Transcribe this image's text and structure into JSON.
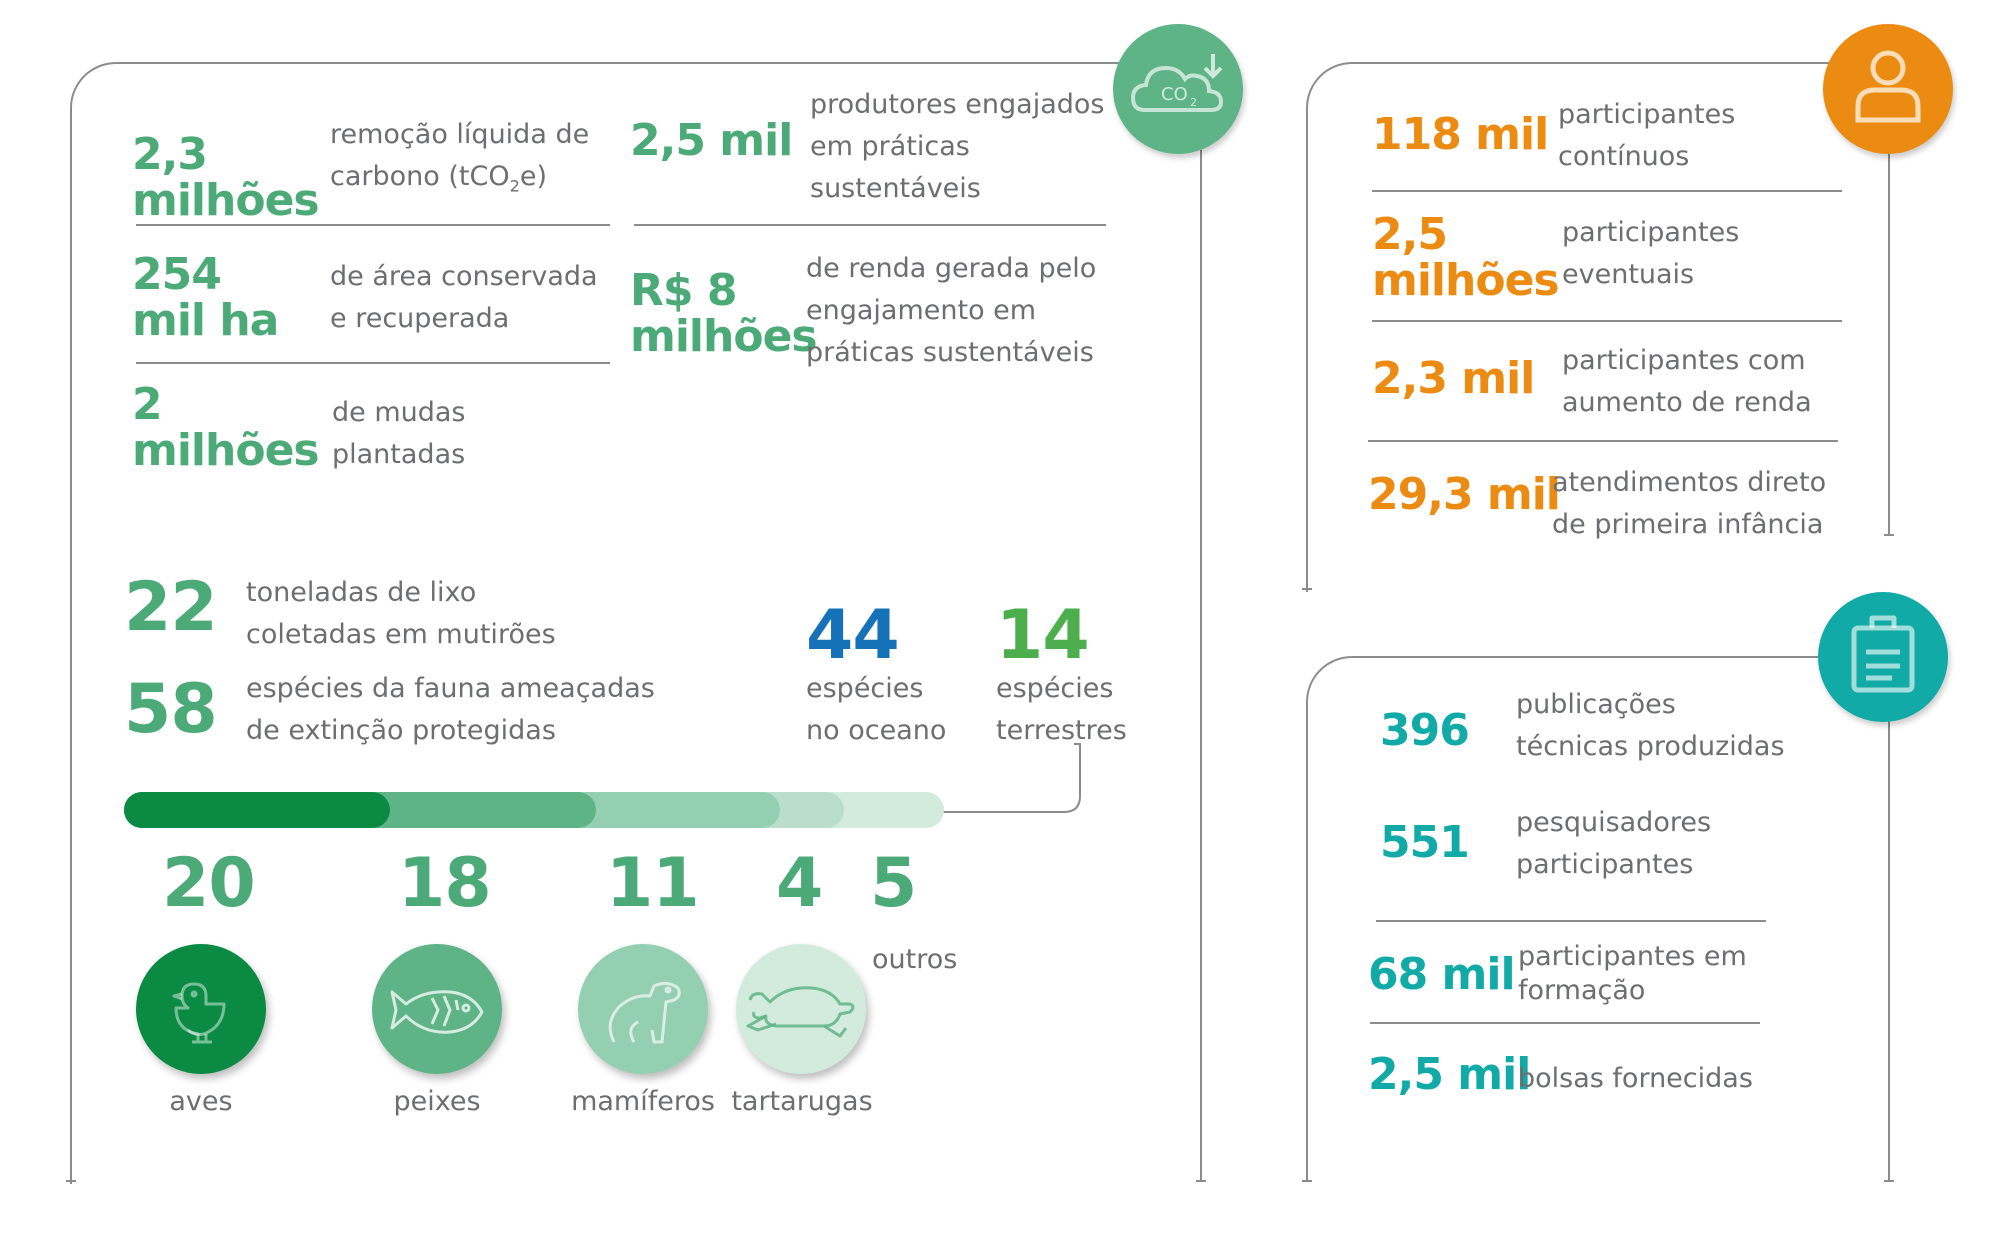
{
  "environment": {
    "stats_left": [
      {
        "value": "2,3\nmilhões",
        "desc_a": "remoção líquida de",
        "desc_b": "carbono (tCO",
        "desc_sub": "2",
        "desc_c": "e)"
      },
      {
        "value": "254\nmil ha",
        "desc": "de área conservada\ne recuperada"
      },
      {
        "value": "2\nmilhões",
        "desc": "de mudas\nplantadas"
      }
    ],
    "stats_right": [
      {
        "value": "2,5 mil",
        "desc": "produtores engajados\nem práticas\nsustentáveis"
      },
      {
        "value": "R$ 8\nmilhões",
        "desc": "de renda gerada pelo\nengajamento em\npráticas sustentáveis"
      }
    ],
    "waste": {
      "value": "22",
      "desc": "toneladas de lixo\ncoletadas em mutirões"
    },
    "fauna": {
      "value": "58",
      "desc": "espécies da fauna ameaçadas\nde extinção protegidas"
    },
    "ocean": {
      "value": "44",
      "desc": "espécies\nno oceano"
    },
    "land": {
      "value": "14",
      "desc": "espécies\nterrestres"
    },
    "species_breakdown": [
      {
        "count": "20",
        "label": "aves",
        "color": "#0a8a43"
      },
      {
        "count": "18",
        "label": "peixes",
        "color": "#5fb487"
      },
      {
        "count": "11",
        "label": "mamíferos",
        "color": "#95cfb1"
      },
      {
        "count": "4",
        "label": "tartarugas",
        "color": "#b9dfca"
      },
      {
        "count": "5",
        "label": "outros",
        "color": "#d3ebdd"
      }
    ],
    "co2_icon_text": "CO",
    "co2_icon_sub": "2"
  },
  "social": {
    "accent": "#ec8b12",
    "stats": [
      {
        "value": "118 mil",
        "desc": "participantes\ncontínuos"
      },
      {
        "value": "2,5\nmilhões",
        "desc": "participantes\neventuais"
      },
      {
        "value": "2,3 mil",
        "desc": "participantes com\naumento de renda"
      },
      {
        "value": "29,3 mil",
        "desc": "atendimentos direto\nde primeira infância"
      }
    ]
  },
  "knowledge": {
    "accent": "#12aaa6",
    "stats": [
      {
        "value": "396",
        "desc": "publicações\ntécnicas produzidas"
      },
      {
        "value": "551",
        "desc": "pesquisadores\nparticipantes"
      },
      {
        "value": "68 mil",
        "desc": "participantes em\nformação"
      },
      {
        "value": "2,5 mil",
        "desc": "bolsas fornecidas"
      }
    ]
  }
}
